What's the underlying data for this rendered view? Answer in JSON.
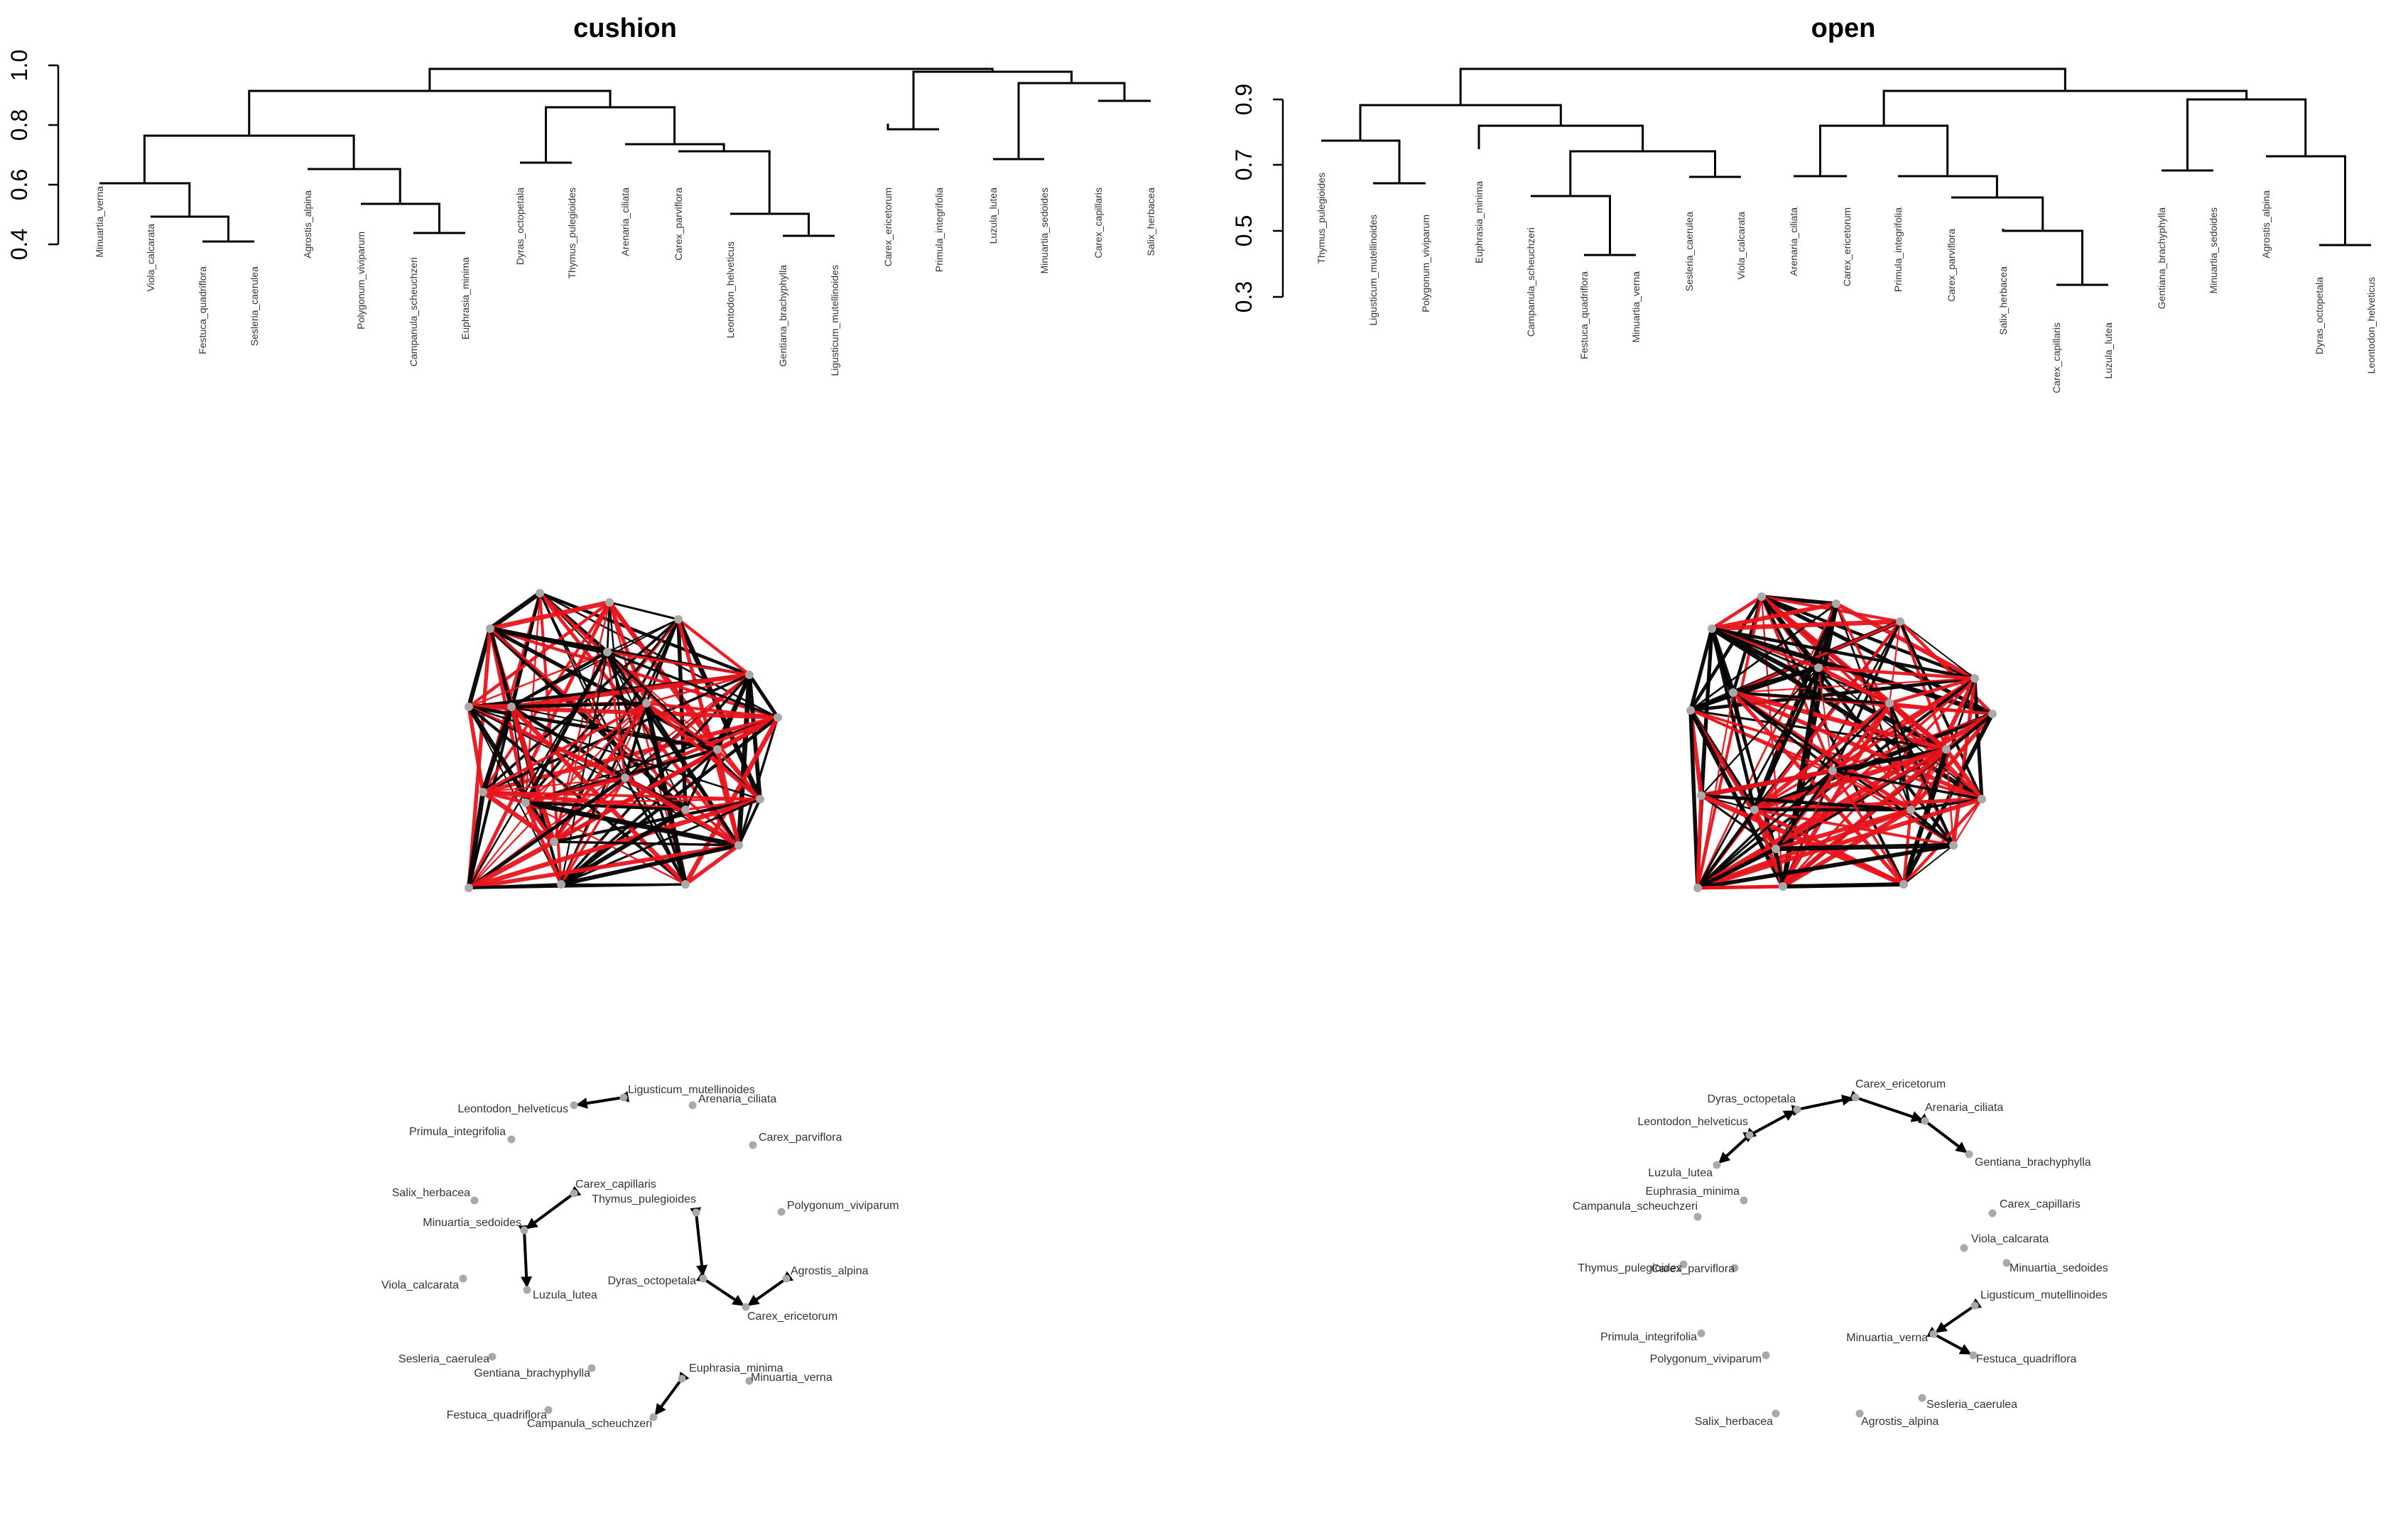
{
  "panels": [
    {
      "title": "cushion",
      "dendrogram": {
        "yticks": [
          "1.0",
          "0.8",
          "0.6",
          "0.4"
        ],
        "leaves": [
          "Minuartia_verna",
          "Viola_calcarata",
          "Festuca_quadriflora",
          "Sesleria_caerulea",
          "Agrostis_alpina",
          "Polygonum_viviparum",
          "Campanula_scheuchzeri",
          "Euphrasia_minima",
          "Dyras_octopetala",
          "Thymus_pulegioides",
          "Arenaria_ciliata",
          "Carex_parviflora",
          "Leontodon_helveticus",
          "Gentiana_brachyphylla",
          "Ligusticum_mutellinoides",
          "Carex_ericetorum",
          "Primula_integrifolia",
          "Luzula_lutea",
          "Minuartia_sedoides",
          "Carex_capillaris",
          "Salix_herbacea"
        ]
      },
      "network": {
        "edge_colors": [
          "#000000",
          "#e8141b"
        ],
        "node_color": "#a9a9a9"
      },
      "labelled_graph": {
        "nodes": [
          "Ligusticum_mutellinoides",
          "Arenaria_ciliata",
          "Leontodon_helveticus",
          "Primula_integrifolia",
          "Carex_parviflora",
          "Carex_capillaris",
          "Thymus_pulegioides",
          "Polygonum_viviparum",
          "Salix_herbacea",
          "Minuartia_sedoides",
          "Agrostis_alpina",
          "Dyras_octopetala",
          "Viola_calcarata",
          "Luzula_lutea",
          "Carex_ericetorum",
          "Sesleria_caerulea",
          "Gentiana_brachyphylla",
          "Euphrasia_minima",
          "Minuartia_verna",
          "Festuca_quadriflora",
          "Campanula_scheuchzeri"
        ],
        "arcs": [
          [
            "Ligusticum_mutellinoides",
            "Leontodon_helveticus"
          ],
          [
            "Carex_capillaris",
            "Minuartia_sedoides"
          ],
          [
            "Minuartia_sedoides",
            "Luzula_lutea"
          ],
          [
            "Thymus_pulegioides",
            "Dyras_octopetala"
          ],
          [
            "Dyras_octopetala",
            "Carex_ericetorum"
          ],
          [
            "Agrostis_alpina",
            "Carex_ericetorum"
          ],
          [
            "Euphrasia_minima",
            "Campanula_scheuchzeri"
          ]
        ]
      }
    },
    {
      "title": "open",
      "dendrogram": {
        "yticks": [
          "0.9",
          "0.7",
          "0.5",
          "0.3"
        ],
        "leaves": [
          "Thymus_pulegioides",
          "Ligusticum_mutellinoides",
          "Polygonum_viviparum",
          "Euphrasia_minima",
          "Campanula_scheuchzeri",
          "Festuca_quadriflora",
          "Minuartia_verna",
          "Sesleria_caerulea",
          "Viola_calcarata",
          "Arenaria_ciliata",
          "Carex_ericetorum",
          "Primula_integrifolia",
          "Carex_parviflora",
          "Salix_herbacea",
          "Carex_capillaris",
          "Luzula_lutea",
          "Gentiana_brachyphylla",
          "Minuartia_sedoides",
          "Agrostis_alpina",
          "Dyras_octopetala",
          "Leontodon_helveticus"
        ]
      },
      "network": {
        "edge_colors": [
          "#000000",
          "#e8141b"
        ],
        "node_color": "#a9a9a9"
      },
      "labelled_graph": {
        "nodes": [
          "Carex_ericetorum",
          "Dyras_octopetala",
          "Arenaria_ciliata",
          "Leontodon_helveticus",
          "Gentiana_brachyphylla",
          "Luzula_lutea",
          "Euphrasia_minima",
          "Campanula_scheuchzeri",
          "Carex_capillaris",
          "Viola_calcarata",
          "Minuartia_sedoides",
          "Thymus_pulegioides",
          "Carex_parviflora",
          "Ligusticum_mutellinoides",
          "Primula_integrifolia",
          "Minuartia_verna",
          "Polygonum_viviparum",
          "Festuca_quadriflora",
          "Sesleria_caerulea",
          "Salix_herbacea",
          "Agrostis_alpina"
        ],
        "arcs": [
          [
            "Dyras_octopetala",
            "Carex_ericetorum"
          ],
          [
            "Leontodon_helveticus",
            "Dyras_octopetala"
          ],
          [
            "Leontodon_helveticus",
            "Luzula_lutea"
          ],
          [
            "Carex_ericetorum",
            "Arenaria_ciliata"
          ],
          [
            "Arenaria_ciliata",
            "Gentiana_brachyphylla"
          ],
          [
            "Ligusticum_mutellinoides",
            "Minuartia_verna"
          ],
          [
            "Minuartia_verna",
            "Festuca_quadriflora"
          ]
        ]
      }
    }
  ]
}
